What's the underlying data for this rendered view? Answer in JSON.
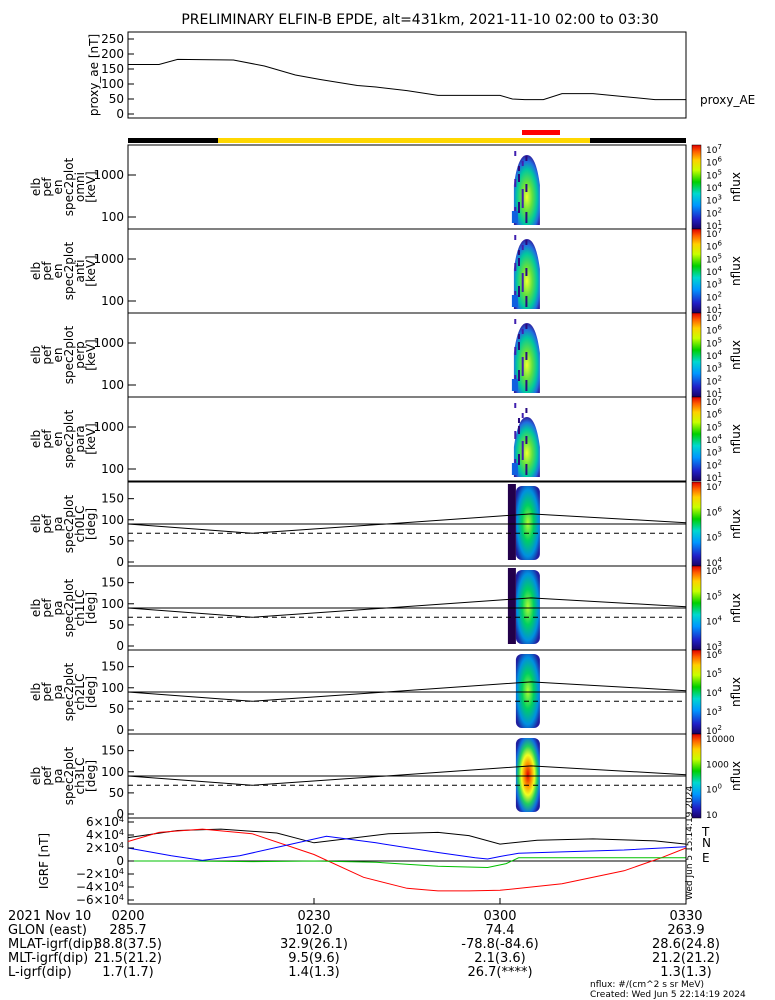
{
  "title": "PRELIMINARY ELFIN-B EPDE, alt=431km, 2021-11-10 02:00 to 03:30",
  "colors": {
    "state_bar_black": "#000000",
    "state_bar_yellow": "#ffd700",
    "science_red": "#ff0000",
    "bfield_t": "#000000",
    "bfield_n": "#ff0000",
    "bfield_e": "#00c000",
    "bfield_b": "#0000ff"
  },
  "chart_data": [
    {
      "type": "line",
      "id": "proxy_ae",
      "ylabel": "proxy_ae [nT]",
      "series_label": "proxy_AE",
      "ylim": [
        0,
        260
      ],
      "yticks": [
        "0",
        "50",
        "100",
        "150",
        "200",
        "250"
      ],
      "ytick_values": [
        0,
        50,
        100,
        150,
        200,
        250
      ],
      "x_minutes": [
        0,
        5,
        8,
        17,
        22,
        27,
        31,
        34,
        37,
        40,
        45,
        50,
        55,
        60,
        62,
        64,
        67,
        70,
        75,
        80,
        85,
        90
      ],
      "values": [
        165,
        165,
        182,
        180,
        160,
        130,
        115,
        105,
        95,
        90,
        78,
        62,
        62,
        62,
        50,
        48,
        48,
        68,
        68,
        58,
        48,
        48
      ]
    },
    {
      "type": "heatmap",
      "id": "omni",
      "ylabel": "elb pef en spec2plot omni [keV]",
      "yticks": [
        "100",
        "1000"
      ],
      "colorbar_label": "nflux",
      "colorbar_ticks": [
        "10<sup>1</sup>",
        "10<sup>2</sup>",
        "10<sup>3</sup>",
        "10<sup>4</sup>",
        "10<sup>5</sup>",
        "10<sup>6</sup>",
        "10<sup>7</sup>"
      ],
      "colorbar_ticks_text": [
        "101",
        "102",
        "103",
        "104",
        "105",
        "106",
        "107"
      ]
    },
    {
      "type": "heatmap",
      "id": "anti",
      "ylabel": "elb pef en spec2plot anti [keV]",
      "yticks": [
        "100",
        "1000"
      ],
      "colorbar_label": "nflux",
      "colorbar_ticks_text": [
        "101",
        "102",
        "103",
        "104",
        "105",
        "106",
        "107"
      ]
    },
    {
      "type": "heatmap",
      "id": "perp",
      "ylabel": "elb pef en spec2plot perp [keV]",
      "yticks": [
        "100",
        "1000"
      ],
      "colorbar_label": "nflux",
      "colorbar_ticks_text": [
        "101",
        "102",
        "103",
        "104",
        "105",
        "106",
        "107"
      ]
    },
    {
      "type": "heatmap",
      "id": "para",
      "ylabel": "elb pef en spec2plot para [keV]",
      "yticks": [
        "100",
        "1000"
      ],
      "colorbar_label": "nflux",
      "colorbar_ticks_text": [
        "101",
        "102",
        "103",
        "104",
        "105",
        "106",
        "107"
      ]
    },
    {
      "type": "heatmap",
      "id": "ch0LC",
      "ylabel": "elb pef pa spec2plot ch0LC [deg]",
      "yticks": [
        "0",
        "50",
        "100",
        "150"
      ],
      "colorbar_label": "nflux",
      "colorbar_ticks_text": [
        "104",
        "105",
        "106",
        "107"
      ]
    },
    {
      "type": "heatmap",
      "id": "ch1LC",
      "ylabel": "elb pef pa spec2plot ch1LC [deg]",
      "yticks": [
        "0",
        "50",
        "100",
        "150"
      ],
      "colorbar_label": "nflux",
      "colorbar_ticks_text": [
        "103",
        "104",
        "105",
        "106"
      ]
    },
    {
      "type": "heatmap",
      "id": "ch2LC",
      "ylabel": "elb pef pa spec2plot ch2LC [deg]",
      "yticks": [
        "0",
        "50",
        "100",
        "150"
      ],
      "colorbar_label": "nflux",
      "colorbar_ticks_text": [
        "102",
        "103",
        "104",
        "105",
        "106"
      ]
    },
    {
      "type": "heatmap",
      "id": "ch3LC",
      "ylabel": "elb pef pa spec2plot ch3LC [deg]",
      "yticks": [
        "0",
        "50",
        "100",
        "150"
      ],
      "colorbar_label": "nflux",
      "colorbar_ticks_text": [
        "10",
        "100",
        "1000",
        "10000"
      ]
    },
    {
      "type": "line",
      "id": "bfield",
      "ylabel": "IGRF [nT]",
      "yticks": [
        "−6×10<sup>4</sup>",
        "−4×10<sup>4</sup>",
        "−2×10<sup>4</sup>",
        "0",
        "2×10<sup>4</sup>",
        "4×10<sup>4</sup>",
        "6×10<sup>4</sup>"
      ],
      "ytick_text": [
        "−6×104",
        "−4×104",
        "−2×104",
        "0",
        "2×104",
        "4×104",
        "6×104"
      ],
      "ytick_values": [
        -60000,
        -40000,
        -20000,
        0,
        20000,
        40000,
        60000
      ],
      "ylim": [
        -60000,
        60000
      ],
      "legend": [
        "T",
        "N",
        "E"
      ],
      "series": [
        {
          "name": "T",
          "color": "#000000",
          "x": [
            0,
            8,
            15,
            24,
            30,
            42,
            50,
            55,
            60,
            66,
            75,
            85,
            90
          ],
          "y": [
            36000,
            47000,
            49000,
            43000,
            28000,
            42000,
            44000,
            39000,
            26000,
            32000,
            34000,
            31000,
            26000
          ]
        },
        {
          "name": "N",
          "color": "#ff0000",
          "x": [
            0,
            5,
            12,
            20,
            30,
            38,
            45,
            50,
            55,
            60,
            70,
            80,
            86,
            90
          ],
          "y": [
            30000,
            44000,
            49000,
            42000,
            10000,
            -25000,
            -42000,
            -46000,
            -46000,
            -45000,
            -35000,
            -15000,
            5000,
            20000
          ]
        },
        {
          "name": "E",
          "color": "#00c000",
          "x": [
            0,
            10,
            20,
            30,
            40,
            50,
            58,
            61,
            63,
            70,
            80,
            90
          ],
          "y": [
            0,
            0,
            -1000,
            0,
            -2000,
            -8000,
            -10000,
            -4000,
            5000,
            5000,
            5000,
            5000
          ]
        },
        {
          "name": "B",
          "color": "#0000ff",
          "x": [
            0,
            7,
            12,
            18,
            25,
            32,
            40,
            50,
            56,
            58,
            60,
            63,
            70,
            80,
            90
          ],
          "y": [
            20000,
            8000,
            1000,
            8000,
            23000,
            38000,
            28000,
            13000,
            5000,
            3000,
            7000,
            12000,
            14000,
            17000,
            22000
          ]
        }
      ]
    }
  ],
  "xaxis": {
    "date_label": "2021 Nov 10",
    "tick_labels": [
      "0200",
      "0230",
      "0300",
      "0330"
    ],
    "tick_minutes": [
      0,
      30,
      60,
      90
    ]
  },
  "orbit_rows": [
    {
      "label": "GLON (east)",
      "values": [
        "285.7",
        "102.0",
        "74.4",
        "263.9"
      ]
    },
    {
      "label": "MLAT-igrf(dip)",
      "values": [
        "38.8(37.5)",
        "32.9(26.1)",
        "-78.8(-84.6)",
        "28.6(24.8)"
      ]
    },
    {
      "label": "MLT-igrf(dip)",
      "values": [
        "21.5(21.2)",
        "9.5(9.6)",
        "2.1(3.6)",
        "21.2(21.2)"
      ]
    },
    {
      "label": "L-igrf(dip)",
      "values": [
        "1.7(1.7)",
        "1.4(1.3)",
        "26.7(****)",
        "1.3(1.3)"
      ]
    }
  ],
  "footer": {
    "units": "nflux: #/(cm^2 s sr MeV)",
    "created": "Created: Wed Jun  5 22:14:19 2024",
    "sidebar_stamp": "Wed Jun 5 15:14:19 2024"
  }
}
